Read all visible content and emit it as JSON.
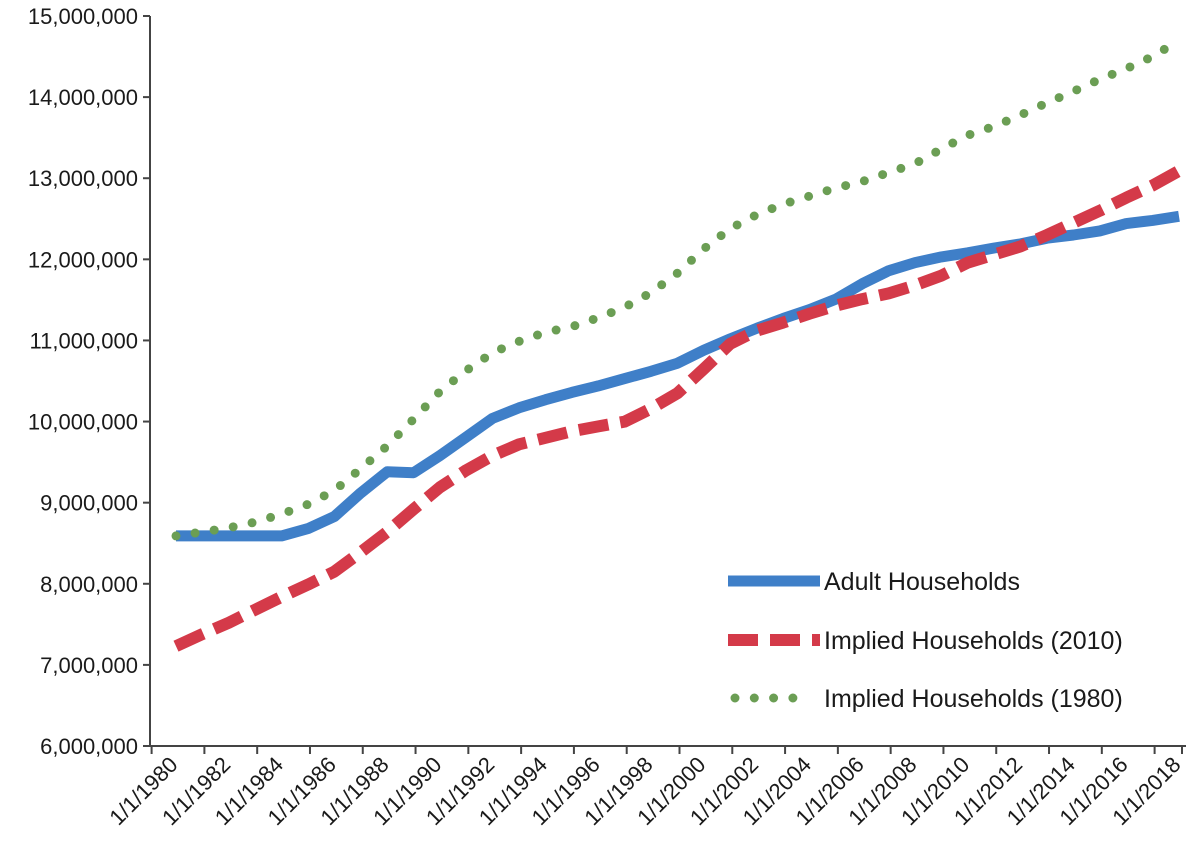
{
  "chart_data": {
    "type": "line",
    "title": "",
    "xlabel": "",
    "ylabel": "",
    "ylim": [
      6000000,
      15000000
    ],
    "yticks": [
      "6,000,000",
      "7,000,000",
      "8,000,000",
      "9,000,000",
      "10,000,000",
      "11,000,000",
      "12,000,000",
      "13,000,000",
      "14,000,000",
      "15,000,000"
    ],
    "x": [
      "1/1/1980",
      "1/1/1981",
      "1/1/1982",
      "1/1/1983",
      "1/1/1984",
      "1/1/1985",
      "1/1/1986",
      "1/1/1987",
      "1/1/1988",
      "1/1/1989",
      "1/1/1990",
      "1/1/1991",
      "1/1/1992",
      "1/1/1993",
      "1/1/1994",
      "1/1/1995",
      "1/1/1996",
      "1/1/1997",
      "1/1/1998",
      "1/1/1999",
      "1/1/2000",
      "1/1/2001",
      "1/1/2002",
      "1/1/2003",
      "1/1/2004",
      "1/1/2005",
      "1/1/2006",
      "1/1/2007",
      "1/1/2008",
      "1/1/2009",
      "1/1/2010",
      "1/1/2011",
      "1/1/2012",
      "1/1/2013",
      "1/1/2014",
      "1/1/2015",
      "1/1/2016",
      "1/1/2017",
      "1/1/2018"
    ],
    "xticks": [
      "1/1/1980",
      "1/1/1982",
      "1/1/1984",
      "1/1/1986",
      "1/1/1988",
      "1/1/1990",
      "1/1/1992",
      "1/1/1994",
      "1/1/1996",
      "1/1/1998",
      "1/1/2000",
      "1/1/2002",
      "1/1/2004",
      "1/1/2006",
      "1/1/2008",
      "1/1/2010",
      "1/1/2012",
      "1/1/2014",
      "1/1/2016",
      "1/1/2018"
    ],
    "series": [
      {
        "name": "Adult Households",
        "color": "#3f7fc8",
        "style": "solid",
        "values": [
          8590000,
          8590000,
          8590000,
          8590000,
          8590000,
          8680000,
          8830000,
          9120000,
          9380000,
          9370000,
          9580000,
          9810000,
          10040000,
          10170000,
          10270000,
          10360000,
          10440000,
          10530000,
          10620000,
          10720000,
          10880000,
          11020000,
          11150000,
          11270000,
          11380000,
          11510000,
          11700000,
          11860000,
          11960000,
          12030000,
          12080000,
          12140000,
          12190000,
          12260000,
          12300000,
          12350000,
          12440000,
          12480000,
          12530000
        ]
      },
      {
        "name": "Implied Households (2010)",
        "color": "#d43a49",
        "style": "dashed",
        "values": [
          7230000,
          7380000,
          7520000,
          7680000,
          7840000,
          7990000,
          8150000,
          8390000,
          8640000,
          8920000,
          9190000,
          9400000,
          9580000,
          9720000,
          9800000,
          9880000,
          9940000,
          10000000,
          10160000,
          10350000,
          10650000,
          10960000,
          11120000,
          11220000,
          11330000,
          11430000,
          11510000,
          11580000,
          11680000,
          11800000,
          11960000,
          12060000,
          12160000,
          12300000,
          12450000,
          12600000,
          12760000,
          12910000,
          13090000
        ]
      },
      {
        "name": "Implied Households (1980)",
        "color": "#6b9e54",
        "style": "dotted",
        "values": [
          8590000,
          8640000,
          8690000,
          8760000,
          8860000,
          8980000,
          9150000,
          9420000,
          9700000,
          10030000,
          10370000,
          10630000,
          10850000,
          10990000,
          11100000,
          11170000,
          11280000,
          11410000,
          11590000,
          11830000,
          12130000,
          12380000,
          12550000,
          12680000,
          12780000,
          12880000,
          12960000,
          13070000,
          13180000,
          13360000,
          13530000,
          13640000,
          13780000,
          13930000,
          14070000,
          14220000,
          14350000,
          14500000,
          14700000
        ]
      }
    ],
    "legend": "bottom-right",
    "grid": false
  }
}
